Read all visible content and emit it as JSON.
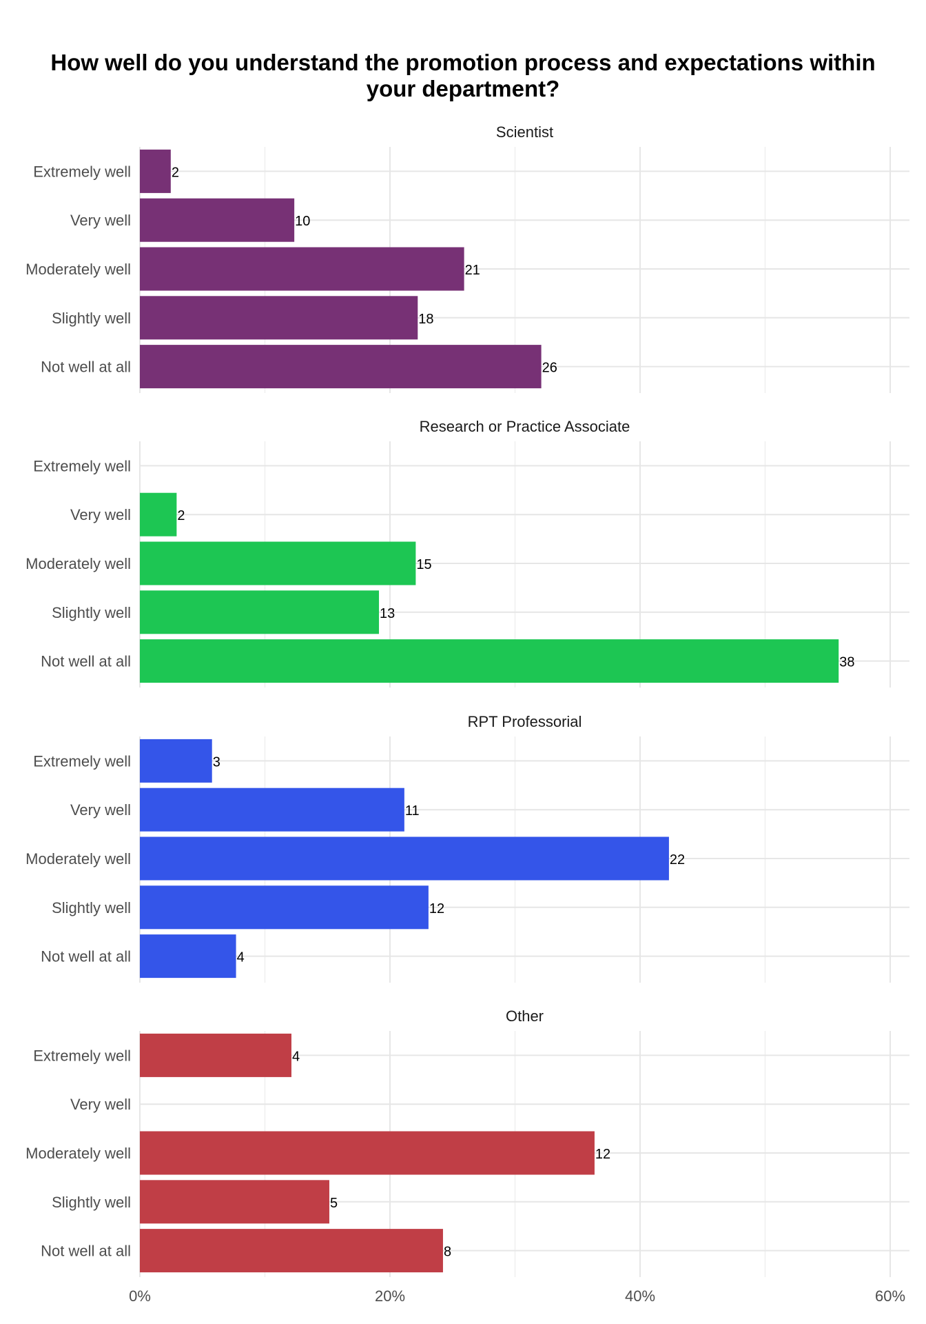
{
  "chart_data": {
    "type": "bar",
    "orientation": "horizontal",
    "title_lines": [
      "How well do you understand the promotion process and expectations within",
      "your department?"
    ],
    "categories": [
      "Extremely well",
      "Very well",
      "Moderately well",
      "Slightly well",
      "Not well at all"
    ],
    "xlim": [
      0,
      0.6
    ],
    "x_ticks": [
      {
        "value": 0,
        "label": "0%"
      },
      {
        "value": 0.2,
        "label": "20%"
      },
      {
        "value": 0.4,
        "label": "40%"
      },
      {
        "value": 0.6,
        "label": "60%"
      }
    ],
    "grid": true,
    "xlabel": "",
    "ylabel": "",
    "panels": [
      {
        "name": "Scientist",
        "color": "#773175",
        "bars": [
          {
            "category": "Extremely well",
            "percent": 0.0247,
            "count_label": "2"
          },
          {
            "category": "Very well",
            "percent": 0.1235,
            "count_label": "10"
          },
          {
            "category": "Moderately well",
            "percent": 0.2593,
            "count_label": "21"
          },
          {
            "category": "Slightly well",
            "percent": 0.2222,
            "count_label": "18"
          },
          {
            "category": "Not well at all",
            "percent": 0.321,
            "count_label": "26"
          }
        ]
      },
      {
        "name": "Research or Practice Associate",
        "color": "#1dc653",
        "bars": [
          {
            "category": "Extremely well",
            "percent": null,
            "count_label": null
          },
          {
            "category": "Very well",
            "percent": 0.0294,
            "count_label": "2"
          },
          {
            "category": "Moderately well",
            "percent": 0.2206,
            "count_label": "15"
          },
          {
            "category": "Slightly well",
            "percent": 0.1912,
            "count_label": "13"
          },
          {
            "category": "Not well at all",
            "percent": 0.5588,
            "count_label": "38"
          }
        ]
      },
      {
        "name": "RPT Professorial",
        "color": "#3455e9",
        "bars": [
          {
            "category": "Extremely well",
            "percent": 0.0577,
            "count_label": "3"
          },
          {
            "category": "Very well",
            "percent": 0.2115,
            "count_label": "11"
          },
          {
            "category": "Moderately well",
            "percent": 0.4231,
            "count_label": "22"
          },
          {
            "category": "Slightly well",
            "percent": 0.2308,
            "count_label": "12"
          },
          {
            "category": "Not well at all",
            "percent": 0.0769,
            "count_label": "4"
          }
        ]
      },
      {
        "name": "Other",
        "color": "#c03e46",
        "bars": [
          {
            "category": "Extremely well",
            "percent": 0.1212,
            "count_label": "4"
          },
          {
            "category": "Very well",
            "percent": null,
            "count_label": null
          },
          {
            "category": "Moderately well",
            "percent": 0.3636,
            "count_label": "12"
          },
          {
            "category": "Slightly well",
            "percent": 0.1515,
            "count_label": "5"
          },
          {
            "category": "Not well at all",
            "percent": 0.2424,
            "count_label": "8"
          }
        ]
      }
    ]
  }
}
